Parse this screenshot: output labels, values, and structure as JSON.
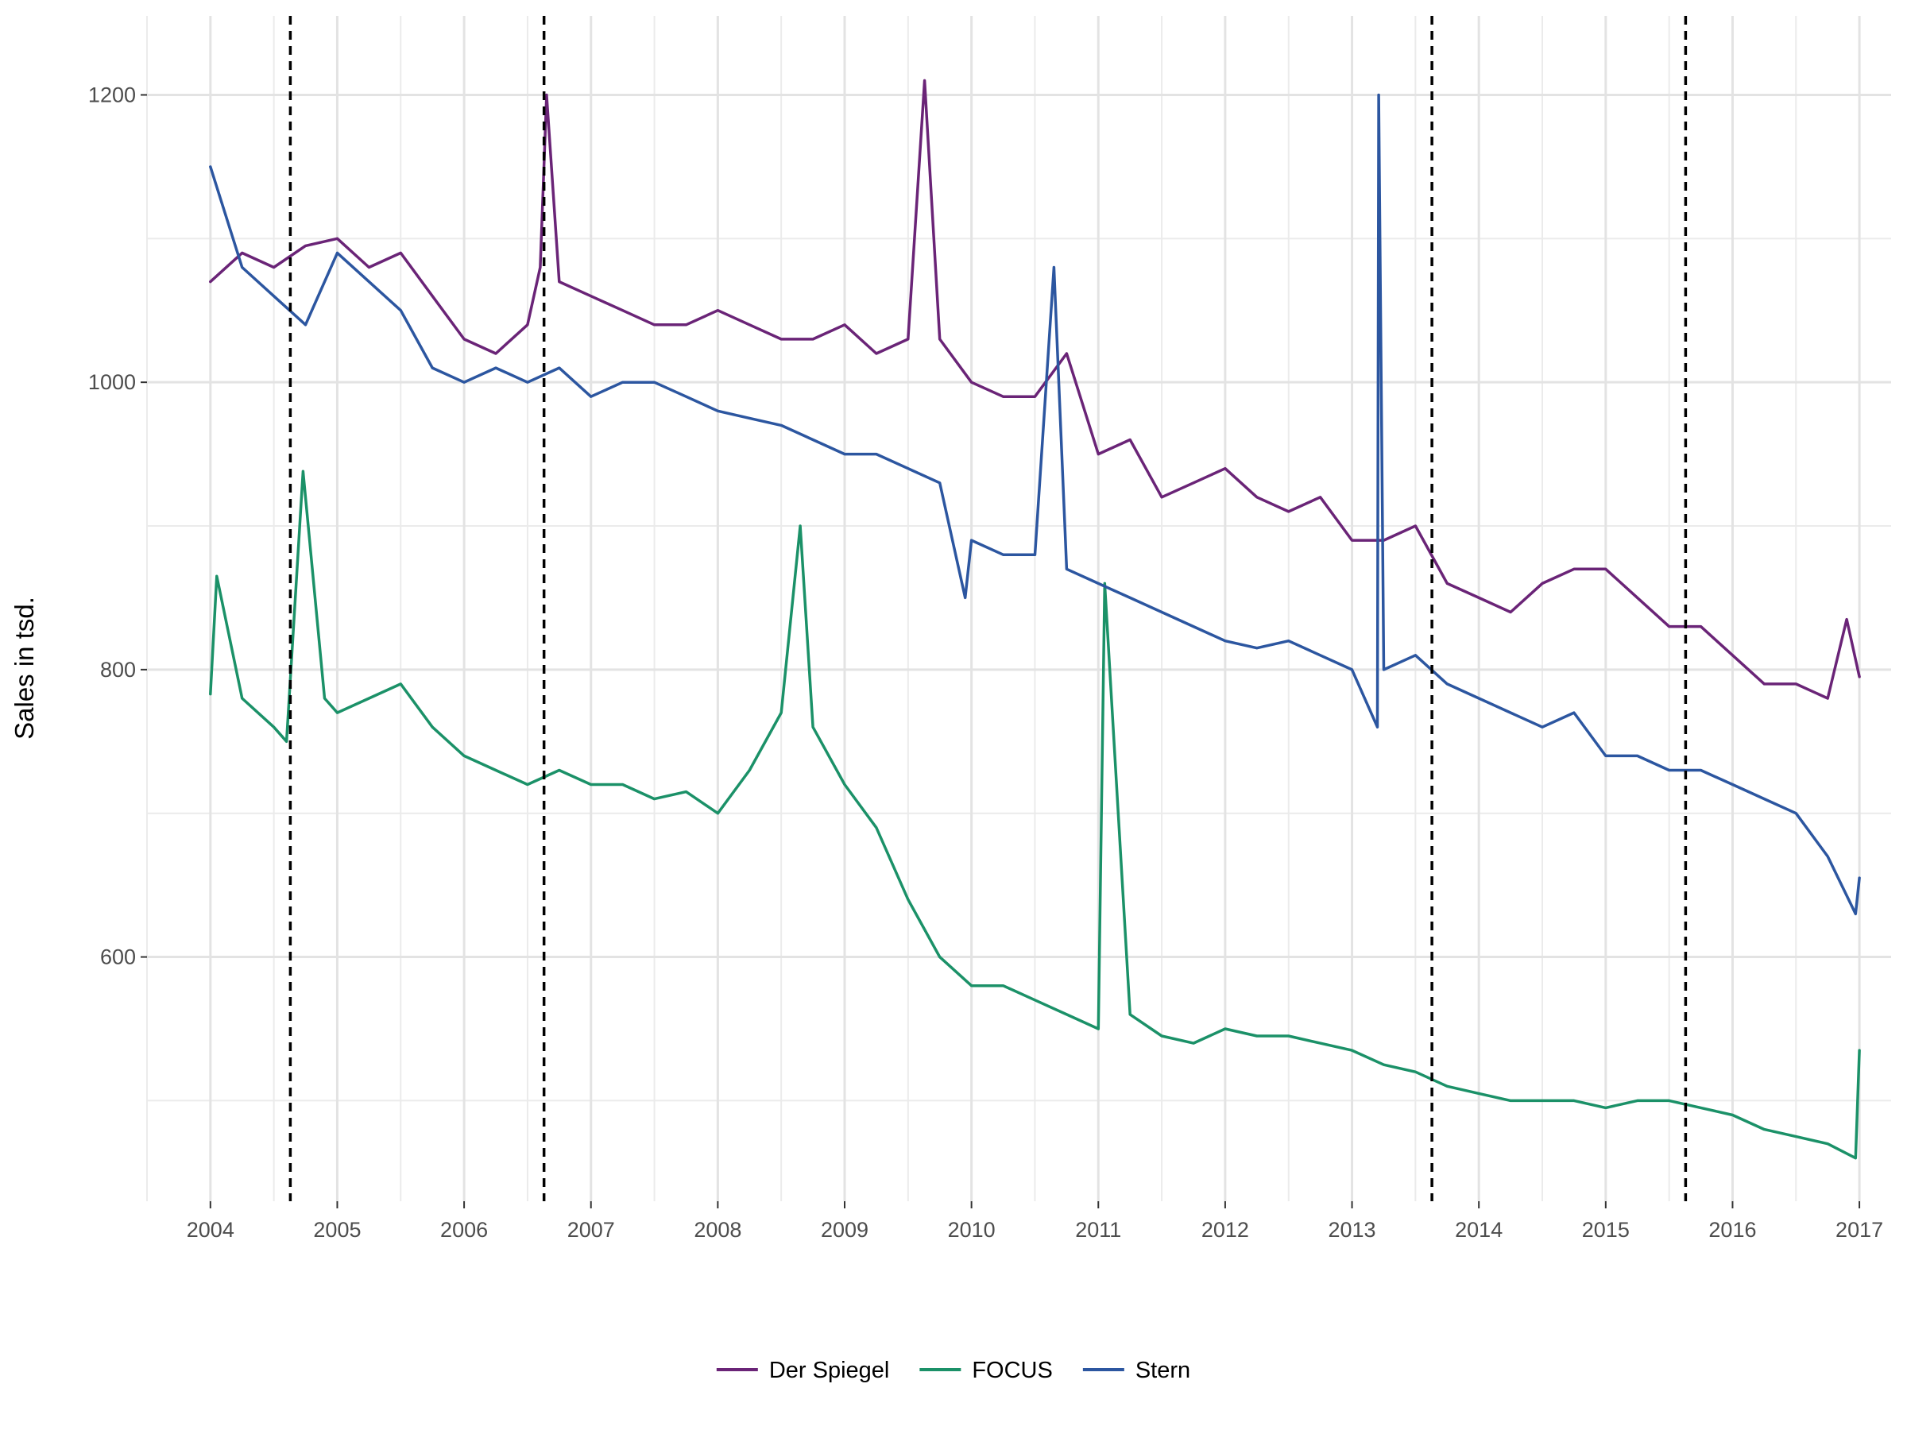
{
  "chart_data": {
    "type": "line",
    "title": "",
    "xlabel": "",
    "ylabel": "Sales in tsd.",
    "xlim": [
      2003.5,
      2017.25
    ],
    "ylim": [
      430,
      1255
    ],
    "x_ticks": [
      "2004",
      "2005",
      "2006",
      "2007",
      "2008",
      "2009",
      "2010",
      "2011",
      "2012",
      "2013",
      "2014",
      "2015",
      "2016",
      "2017"
    ],
    "y_ticks": [
      600,
      800,
      1000,
      1200
    ],
    "grid": true,
    "legend_position": "bottom",
    "vertical_lines": [
      2004.63,
      2006.63,
      2013.63,
      2015.63
    ],
    "vertical_line_style": "dashed",
    "series": [
      {
        "name": "Der Spiegel",
        "color": "#6a2477",
        "x": [
          2004.0,
          2004.25,
          2004.5,
          2004.75,
          2005.0,
          2005.25,
          2005.5,
          2005.75,
          2006.0,
          2006.25,
          2006.5,
          2006.6,
          2006.65,
          2006.75,
          2007.0,
          2007.25,
          2007.5,
          2007.75,
          2008.0,
          2008.25,
          2008.5,
          2008.75,
          2009.0,
          2009.25,
          2009.5,
          2009.63,
          2009.75,
          2010.0,
          2010.25,
          2010.5,
          2010.75,
          2011.0,
          2011.25,
          2011.5,
          2011.75,
          2012.0,
          2012.25,
          2012.5,
          2012.75,
          2013.0,
          2013.25,
          2013.5,
          2013.75,
          2014.0,
          2014.25,
          2014.5,
          2014.75,
          2015.0,
          2015.25,
          2015.5,
          2015.75,
          2016.0,
          2016.25,
          2016.5,
          2016.75,
          2016.9,
          2017.0
        ],
        "values": [
          1070,
          1090,
          1080,
          1095,
          1100,
          1080,
          1090,
          1060,
          1030,
          1020,
          1040,
          1080,
          1200,
          1070,
          1060,
          1050,
          1040,
          1040,
          1050,
          1040,
          1030,
          1030,
          1040,
          1020,
          1030,
          1210,
          1030,
          1000,
          990,
          990,
          1020,
          950,
          960,
          920,
          930,
          940,
          920,
          910,
          920,
          890,
          890,
          900,
          860,
          850,
          840,
          860,
          870,
          870,
          850,
          830,
          830,
          810,
          790,
          790,
          780,
          835,
          795
        ]
      },
      {
        "name": "FOCUS",
        "color": "#1b9168",
        "x": [
          2004.0,
          2004.05,
          2004.25,
          2004.5,
          2004.6,
          2004.73,
          2004.9,
          2005.0,
          2005.25,
          2005.5,
          2005.75,
          2006.0,
          2006.25,
          2006.5,
          2006.75,
          2007.0,
          2007.25,
          2007.5,
          2007.75,
          2008.0,
          2008.25,
          2008.5,
          2008.65,
          2008.75,
          2009.0,
          2009.25,
          2009.5,
          2009.75,
          2010.0,
          2010.25,
          2010.5,
          2010.75,
          2011.0,
          2011.05,
          2011.25,
          2011.5,
          2011.75,
          2012.0,
          2012.25,
          2012.5,
          2012.75,
          2013.0,
          2013.25,
          2013.5,
          2013.75,
          2014.0,
          2014.25,
          2014.5,
          2014.75,
          2015.0,
          2015.25,
          2015.5,
          2015.75,
          2016.0,
          2016.25,
          2016.5,
          2016.75,
          2016.97,
          2017.0
        ],
        "values": [
          783,
          865,
          780,
          760,
          750,
          938,
          780,
          770,
          780,
          790,
          760,
          740,
          730,
          720,
          730,
          720,
          720,
          710,
          715,
          700,
          730,
          770,
          900,
          760,
          720,
          690,
          640,
          600,
          580,
          580,
          570,
          560,
          550,
          860,
          560,
          545,
          540,
          550,
          545,
          545,
          540,
          535,
          525,
          520,
          510,
          505,
          500,
          500,
          500,
          495,
          500,
          500,
          495,
          490,
          480,
          475,
          470,
          460,
          535
        ]
      },
      {
        "name": "Stern",
        "color": "#2c56a0",
        "x": [
          2004.0,
          2004.25,
          2004.5,
          2004.75,
          2005.0,
          2005.25,
          2005.5,
          2005.75,
          2006.0,
          2006.25,
          2006.5,
          2006.75,
          2007.0,
          2007.25,
          2007.5,
          2007.75,
          2008.0,
          2008.25,
          2008.5,
          2008.75,
          2009.0,
          2009.25,
          2009.5,
          2009.75,
          2009.95,
          2010.0,
          2010.25,
          2010.5,
          2010.65,
          2010.75,
          2011.0,
          2011.25,
          2011.5,
          2011.75,
          2012.0,
          2012.25,
          2012.5,
          2012.75,
          2013.0,
          2013.2,
          2013.21,
          2013.25,
          2013.5,
          2013.75,
          2014.0,
          2014.25,
          2014.5,
          2014.75,
          2015.0,
          2015.25,
          2015.5,
          2015.75,
          2016.0,
          2016.25,
          2016.5,
          2016.75,
          2016.97,
          2017.0
        ],
        "values": [
          1150,
          1080,
          1060,
          1040,
          1090,
          1070,
          1050,
          1010,
          1000,
          1010,
          1000,
          1010,
          990,
          1000,
          1000,
          990,
          980,
          975,
          970,
          960,
          950,
          950,
          940,
          930,
          850,
          890,
          880,
          880,
          1080,
          870,
          860,
          850,
          840,
          830,
          820,
          815,
          820,
          810,
          800,
          760,
          1200,
          800,
          810,
          790,
          780,
          770,
          760,
          770,
          740,
          740,
          730,
          730,
          720,
          710,
          700,
          670,
          630,
          655
        ]
      }
    ]
  }
}
